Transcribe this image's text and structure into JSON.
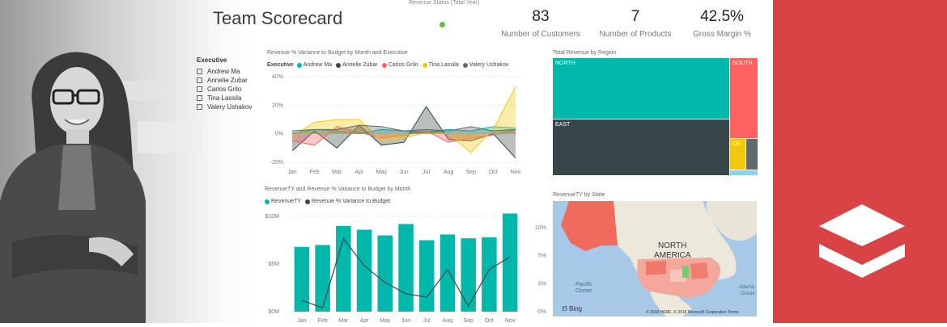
{
  "header": {
    "title": "Team Scorecard",
    "status_label": "Revenue Status (Total Year)"
  },
  "kpis": [
    {
      "value": "83",
      "label": "Number of Customers"
    },
    {
      "value": "7",
      "label": "Number of Products"
    },
    {
      "value": "42.5%",
      "label": "Gross Margin %"
    }
  ],
  "slicer": {
    "title": "Executive",
    "items": [
      "Andrew Ma",
      "Annelie Zubar",
      "Carlos Grilo",
      "Tina Lassila",
      "Valery Ushakov"
    ]
  },
  "colors": {
    "teal": "#01b8aa",
    "dark": "#374649",
    "red": "#fd625e",
    "yellow": "#f2c80f",
    "gray": "#5f6b6d",
    "brand_red": "#d94346",
    "status_green": "#5fbf3a"
  },
  "chart_data": [
    {
      "type": "area",
      "title": "Revenue % Variance to Budget by Month and Executive",
      "legend_title": "Executive",
      "categories": [
        "Jan",
        "Feb",
        "Mar",
        "Apr",
        "May",
        "Jun",
        "Jul",
        "Aug",
        "Sep",
        "Oct",
        "Nov"
      ],
      "ylim": [
        -20,
        40
      ],
      "yticks": [
        "40%",
        "20%",
        "0%",
        "-20%"
      ],
      "ytick_values": [
        40,
        20,
        0,
        -20
      ],
      "series": [
        {
          "name": "Andrew Ma",
          "color": "#01b8aa",
          "values": [
            0,
            3,
            2,
            0,
            3,
            2,
            1,
            3,
            2,
            5,
            4
          ]
        },
        {
          "name": "Annelie Zubar",
          "color": "#374649",
          "values": [
            -12,
            2,
            -10,
            6,
            -8,
            -6,
            19,
            -4,
            -5,
            0,
            -17
          ]
        },
        {
          "name": "Carlos Grilo",
          "color": "#fd625e",
          "values": [
            -5,
            -8,
            5,
            1,
            -3,
            -1,
            2,
            -6,
            -3,
            -1,
            3
          ]
        },
        {
          "name": "Tina Lassila",
          "color": "#f2c80f",
          "values": [
            -2,
            8,
            10,
            10,
            -5,
            -3,
            1,
            0,
            -13,
            3,
            33
          ]
        },
        {
          "name": "Valery Ushakov",
          "color": "#5f6b6d",
          "values": [
            2,
            3,
            3,
            6,
            5,
            2,
            3,
            2,
            5,
            2,
            3
          ]
        }
      ]
    },
    {
      "type": "bar",
      "title": "RevenueTY and Revenue % Variance to Budget by Month",
      "categories": [
        "Jan",
        "Feb",
        "Mar",
        "Apr",
        "May",
        "Jun",
        "Jul",
        "Aug",
        "Sep",
        "Oct",
        "Nov"
      ],
      "ylim": [
        0,
        10
      ],
      "yticks": [
        "$10M",
        "$5M",
        "$0M"
      ],
      "ytick_values": [
        10,
        5,
        0
      ],
      "y2lim": [
        -5,
        12
      ],
      "y2ticks": [
        "10%",
        "5%",
        "0%",
        "-5%"
      ],
      "y2tick_values": [
        10,
        5,
        0,
        -5
      ],
      "series": [
        {
          "name": "RevenueTY",
          "color": "#01b8aa",
          "values": [
            6.8,
            7,
            9,
            8.6,
            8,
            9.2,
            7.5,
            8.1,
            7.7,
            7.8,
            10.3
          ]
        },
        {
          "name": "Revenue % Variance to Budget",
          "color": "#374649",
          "values": [
            -3,
            -4.3,
            8,
            3.2,
            0.2,
            -1.8,
            -2.4,
            2.5,
            -4,
            2.5,
            4.8
          ]
        }
      ]
    }
  ],
  "treemap": {
    "title": "Total Revenue by Region",
    "regions": [
      {
        "label": "NORTH",
        "color": "#01b8aa"
      },
      {
        "label": "SOUTH",
        "color": "#fd625e"
      },
      {
        "label": "EAST",
        "color": "#374649"
      },
      {
        "label": "CE...",
        "color": "#f2c80f"
      },
      {
        "label": "",
        "color": "#5f6b6d"
      },
      {
        "label": "",
        "color": "#8ad4eb"
      }
    ]
  },
  "map": {
    "title": "RevenueTY by State",
    "labels": {
      "continent": "NORTH AMERICA",
      "pacific": "Pacific Ocean",
      "atlantic": "Atlantic Ocean",
      "bing": "Bing",
      "copyright": "© 2018 HERE, © 2018 Microsoft Corporation  Terms"
    }
  }
}
